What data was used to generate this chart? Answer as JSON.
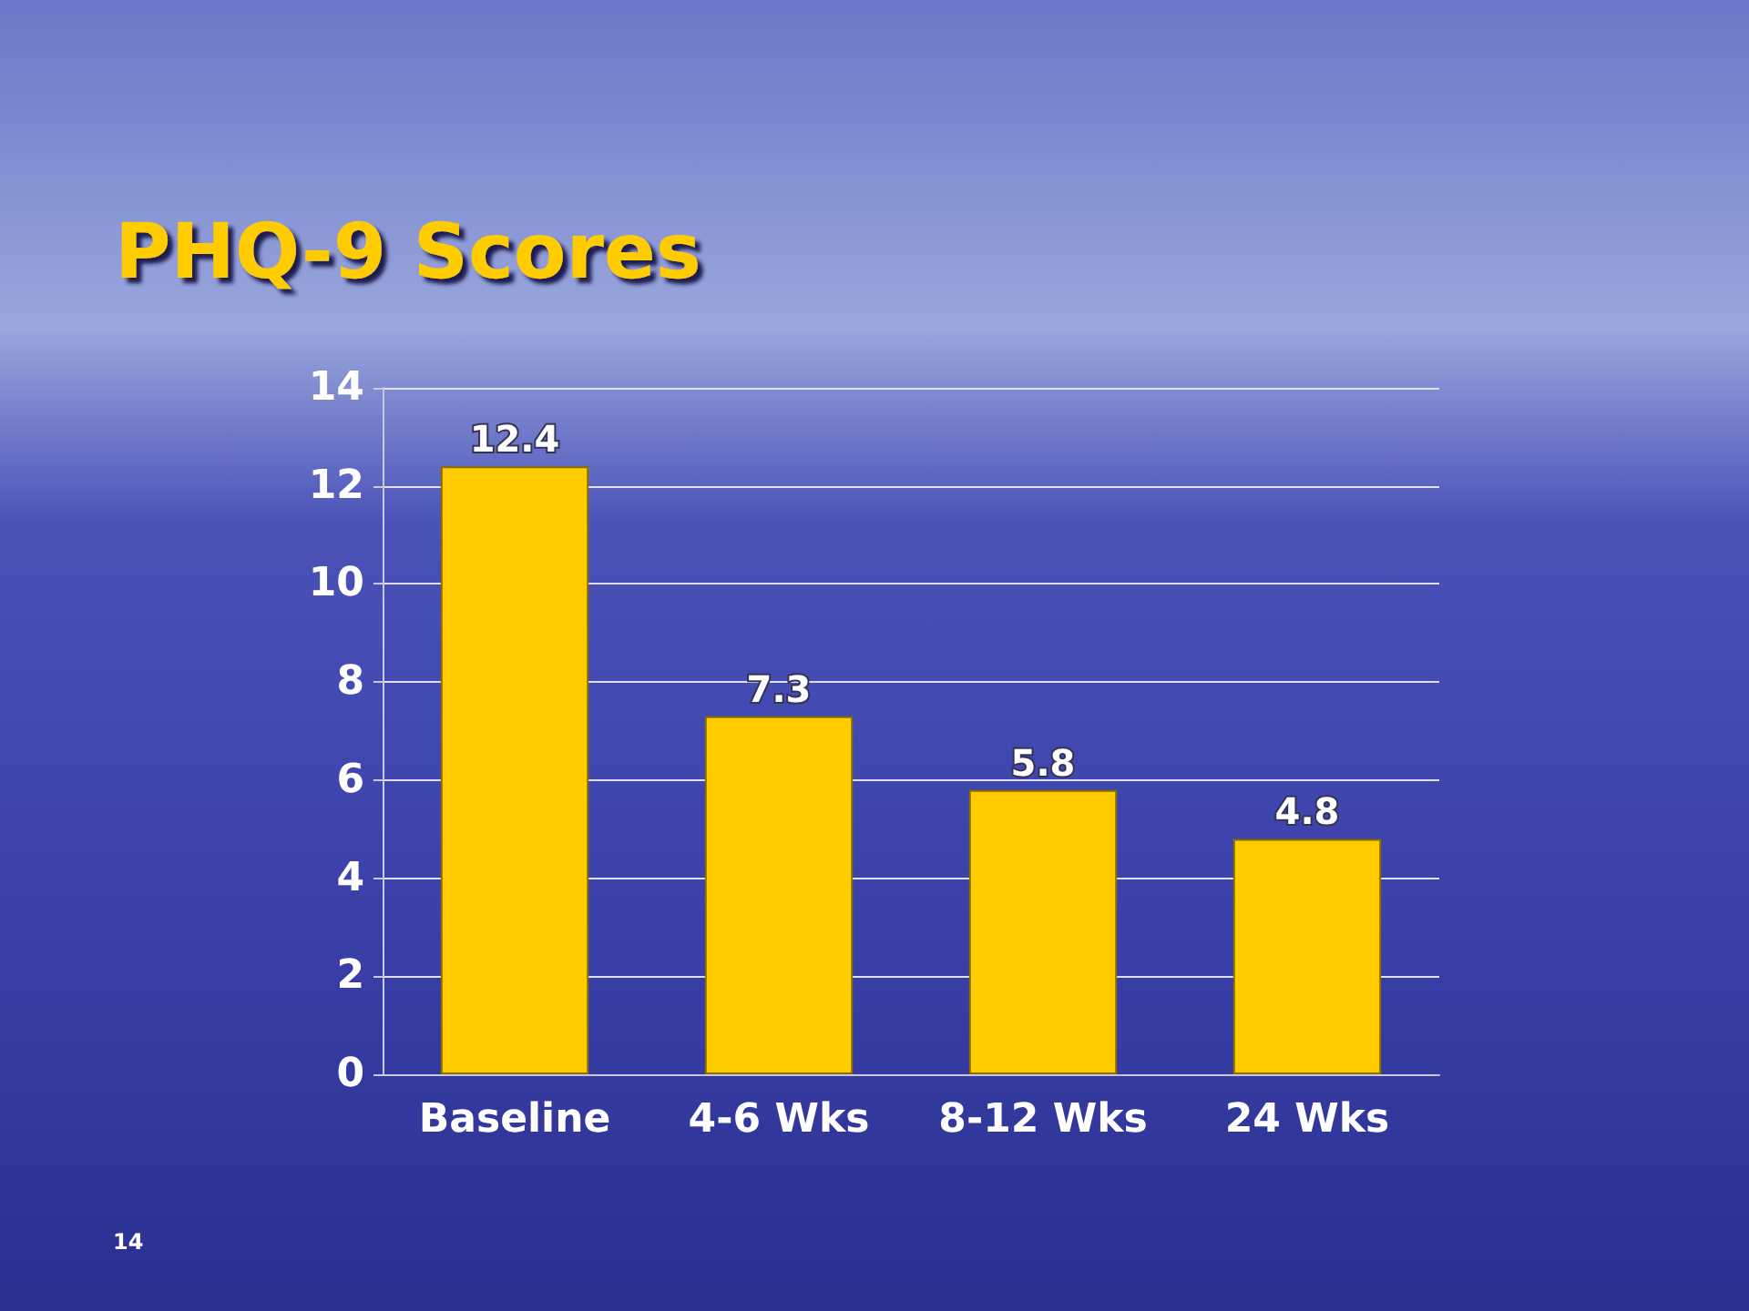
{
  "chart_data": {
    "type": "bar",
    "title": "PHQ-9 Scores",
    "categories": [
      "Baseline",
      "4-6 Wks",
      "8-12 Wks",
      "24 Wks"
    ],
    "values": [
      12.4,
      7.3,
      5.8,
      4.8
    ],
    "color": "#ffcc00",
    "ylim": [
      0,
      14
    ],
    "yticks": [
      0,
      2,
      4,
      6,
      8,
      10,
      12,
      14
    ],
    "grid": "y",
    "data_labels": true,
    "annotations": [
      "14"
    ]
  }
}
